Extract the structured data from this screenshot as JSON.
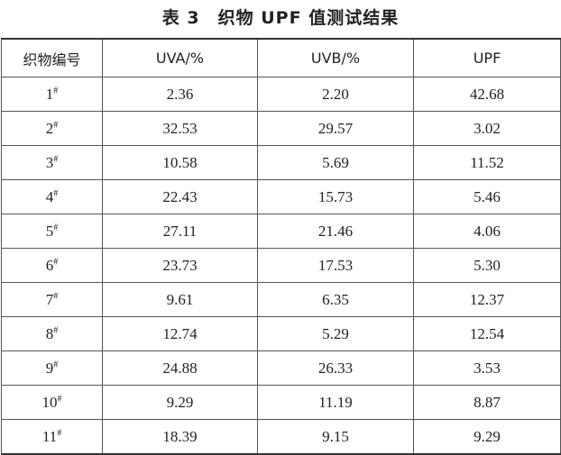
{
  "header": {
    "title": "表 3　织物 UPF 值测试结果"
  },
  "table": {
    "columns": [
      "织物编号",
      "UVA/%",
      "UVB/%",
      "UPF"
    ],
    "rows": [
      [
        {
          "id": "1",
          "sup": "#"
        },
        "2.36",
        "2.20",
        "42.68"
      ],
      [
        {
          "id": "2",
          "sup": "#"
        },
        "32.53",
        "29.57",
        "3.02"
      ],
      [
        {
          "id": "3",
          "sup": "#"
        },
        "10.58",
        "5.69",
        "11.52"
      ],
      [
        {
          "id": "4",
          "sup": "#"
        },
        "22.43",
        "15.73",
        "5.46"
      ],
      [
        {
          "id": "5",
          "sup": "#"
        },
        "27.11",
        "21.46",
        "4.06"
      ],
      [
        {
          "id": "6",
          "sup": "#"
        },
        "23.73",
        "17.53",
        "5.30"
      ],
      [
        {
          "id": "7",
          "sup": "#"
        },
        "9.61",
        "6.35",
        "12.37"
      ],
      [
        {
          "id": "8",
          "sup": "#"
        },
        "12.74",
        "5.29",
        "12.54"
      ],
      [
        {
          "id": "9",
          "sup": "#"
        },
        "24.88",
        "26.33",
        "3.53"
      ],
      [
        {
          "id": "10",
          "sup": "#"
        },
        "9.29",
        "11.19",
        "8.87"
      ],
      [
        {
          "id": "11",
          "sup": "#"
        },
        "18.39",
        "9.15",
        "9.29"
      ]
    ]
  }
}
